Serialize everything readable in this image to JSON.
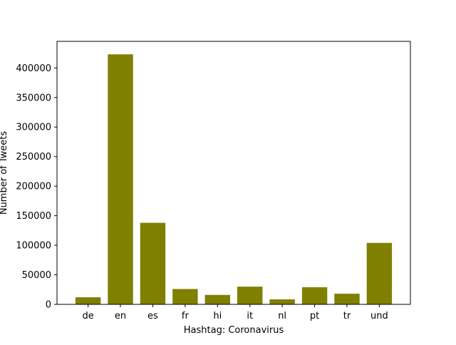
{
  "chart_data": {
    "type": "bar",
    "categories": [
      "de",
      "en",
      "es",
      "fr",
      "hi",
      "it",
      "nl",
      "pt",
      "tr",
      "und"
    ],
    "values": [
      12000,
      423000,
      138000,
      26000,
      16000,
      30000,
      8500,
      29000,
      18000,
      104000
    ],
    "xlabel": "Hashtag: Coronavirus",
    "ylabel": "Number of Tweets",
    "ylim": [
      0,
      445000
    ],
    "yticks": [
      0,
      50000,
      100000,
      150000,
      200000,
      250000,
      300000,
      350000,
      400000
    ],
    "bar_color": "#808000",
    "grid": false,
    "legend": "none"
  }
}
